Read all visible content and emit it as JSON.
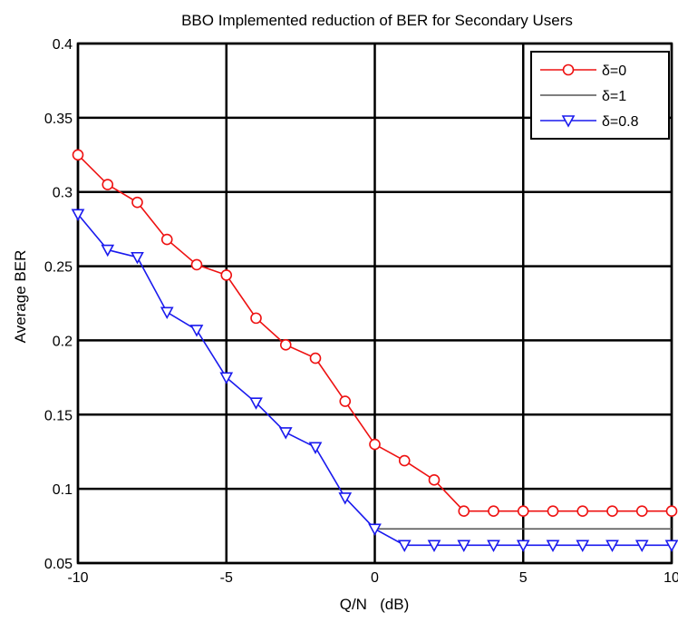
{
  "chart_data": {
    "type": "line",
    "title": "BBO Implemented reduction of BER for Secondary Users",
    "xlabel": "Q/N   (dB)",
    "ylabel": "Average BER",
    "xlim": [
      -10,
      10
    ],
    "ylim": [
      0.05,
      0.4
    ],
    "x_ticks": [
      "-10",
      "-5",
      "0",
      "5",
      "10"
    ],
    "y_ticks": [
      "0.05",
      "0.1",
      "0.15",
      "0.2",
      "0.25",
      "0.3",
      "0.35",
      "0.4"
    ],
    "grid": true,
    "legend_position": "top-right",
    "series": [
      {
        "name": "δ=0",
        "color": "#ee1111",
        "marker": "circle",
        "x": [
          -10,
          -9,
          -8,
          -7,
          -6,
          -5,
          -4,
          -3,
          -2,
          -1,
          0,
          1,
          2,
          3,
          4,
          5,
          6,
          7,
          8,
          9,
          10
        ],
        "values": [
          0.325,
          0.305,
          0.293,
          0.268,
          0.251,
          0.244,
          0.215,
          0.197,
          0.188,
          0.159,
          0.13,
          0.119,
          0.106,
          0.085,
          0.085,
          0.085,
          0.085,
          0.085,
          0.085,
          0.085,
          0.085
        ]
      },
      {
        "name": "δ=1",
        "color": "#555555",
        "marker": "none",
        "x": [
          0,
          1,
          2,
          3,
          4,
          5,
          6,
          7,
          8,
          9,
          10
        ],
        "values": [
          0.073,
          0.073,
          0.073,
          0.073,
          0.073,
          0.073,
          0.073,
          0.073,
          0.073,
          0.073,
          0.073
        ]
      },
      {
        "name": "δ=0.8",
        "color": "#1a1aee",
        "marker": "triangle-down",
        "x": [
          -10,
          -9,
          -8,
          -7,
          -6,
          -5,
          -4,
          -3,
          -2,
          -1,
          0,
          1,
          2,
          3,
          4,
          5,
          6,
          7,
          8,
          9,
          10
        ],
        "values": [
          0.285,
          0.261,
          0.256,
          0.219,
          0.207,
          0.175,
          0.158,
          0.138,
          0.128,
          0.094,
          0.073,
          0.062,
          0.062,
          0.062,
          0.062,
          0.062,
          0.062,
          0.062,
          0.062,
          0.062,
          0.062
        ]
      }
    ]
  }
}
